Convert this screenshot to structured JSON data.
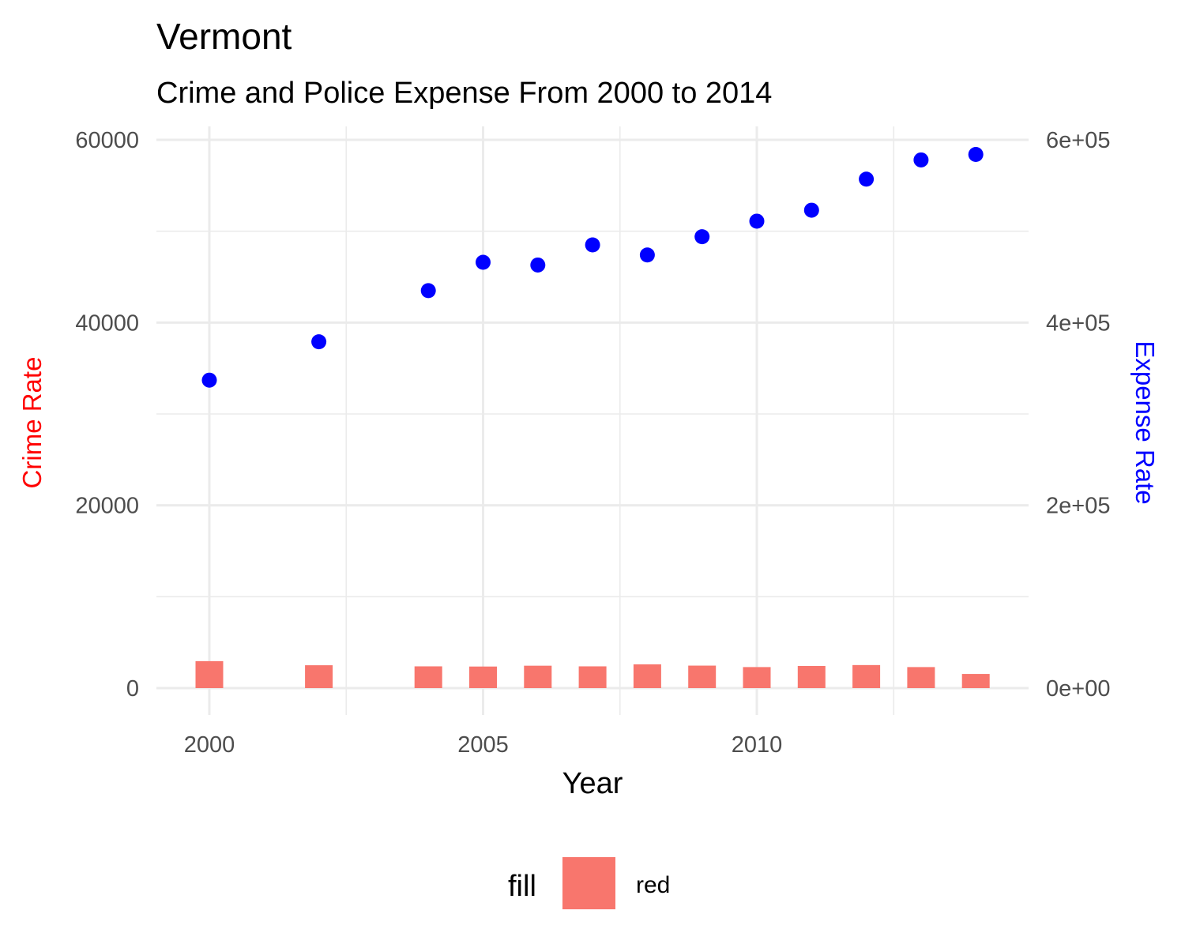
{
  "chart_data": {
    "type": "bar",
    "title": "Vermont",
    "subtitle": "Crime and Police Expense From 2000 to 2014",
    "xlabel": "Year",
    "ylabel_left": "Crime Rate",
    "ylabel_right": "Expense Rate",
    "xlim": [
      1999,
      2015
    ],
    "ylim_left": [
      0,
      60000
    ],
    "ylim_right": [
      0,
      600000
    ],
    "x_ticks": [
      "2000",
      "2005",
      "2010"
    ],
    "y_left_ticks": [
      "0",
      "20000",
      "40000",
      "60000"
    ],
    "y_right_ticks": [
      "0e+00",
      "2e+05",
      "4e+05",
      "6e+05"
    ],
    "grid": true,
    "legend": {
      "title": "fill",
      "label": "red",
      "position": "bottom"
    },
    "colors": {
      "bars": "#F8766D",
      "points": "#0000FF",
      "left_axis_label": "#FF0000",
      "right_axis_label": "#0000FF"
    },
    "series": [
      {
        "type": "bar",
        "axis": "left",
        "x": [
          2000,
          2002,
          2004,
          2005,
          2006,
          2007,
          2008,
          2009,
          2010,
          2011,
          2012,
          2013,
          2014
        ],
        "values": [
          2950,
          2500,
          2380,
          2360,
          2450,
          2380,
          2600,
          2460,
          2300,
          2420,
          2520,
          2300,
          1550
        ]
      },
      {
        "type": "scatter",
        "axis": "right",
        "x": [
          2000,
          2002,
          2004,
          2005,
          2006,
          2007,
          2008,
          2009,
          2010,
          2011,
          2012,
          2013,
          2014
        ],
        "values": [
          337000,
          379000,
          435000,
          466000,
          463000,
          485000,
          474000,
          494000,
          511000,
          523000,
          557000,
          578000,
          584000
        ]
      }
    ]
  }
}
